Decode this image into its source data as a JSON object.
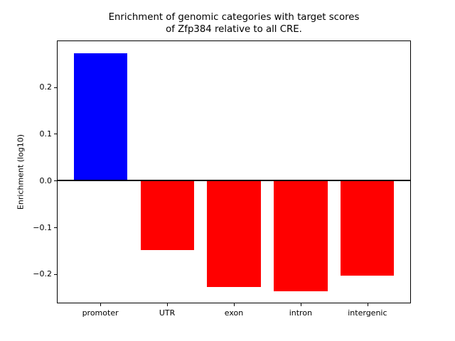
{
  "figure": {
    "title": "Enrichment of genomic categories with target scores\nof Zfp384 relative to all CRE.",
    "ylabel": "Enrichment (log10)"
  },
  "chart_data": {
    "type": "bar",
    "title": "Enrichment of genomic categories with target scores of Zfp384 relative to all CRE.",
    "xlabel": "",
    "ylabel": "Enrichment (log10)",
    "categories": [
      "promoter",
      "UTR",
      "exon",
      "intron",
      "intergenic"
    ],
    "values": [
      0.273,
      -0.149,
      -0.228,
      -0.237,
      -0.204
    ],
    "bar_colors": [
      "#0000ff",
      "#ff0000",
      "#ff0000",
      "#ff0000",
      "#ff0000"
    ],
    "positive_color": "#0000ff",
    "negative_color": "#ff0000",
    "yticks": [
      {
        "value": 0.2,
        "label": "0.2"
      },
      {
        "value": 0.1,
        "label": "0.1"
      },
      {
        "value": 0.0,
        "label": "0.0"
      },
      {
        "value": -0.1,
        "label": "−0.1"
      },
      {
        "value": -0.2,
        "label": "−0.2"
      }
    ],
    "ylim": [
      -0.261,
      0.298
    ],
    "xlim": [
      -0.64,
      4.64
    ],
    "bar_width": 0.8,
    "zero_line": true,
    "grid": false,
    "legend": null
  }
}
